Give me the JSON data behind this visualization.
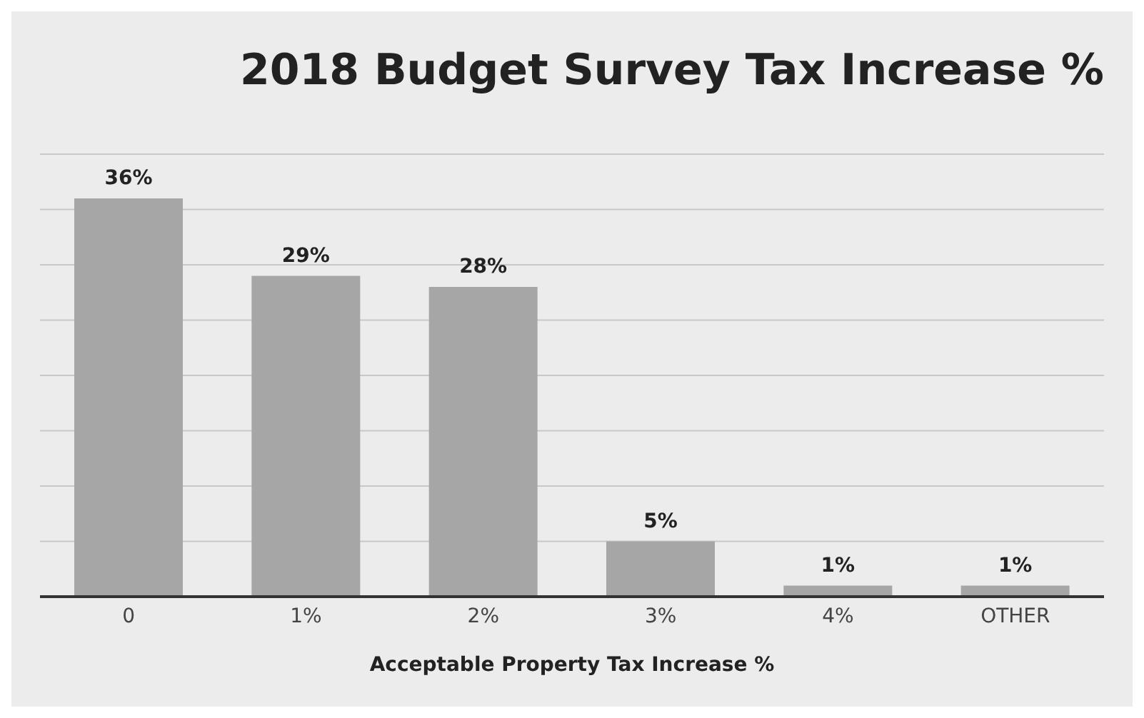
{
  "chart_data": {
    "type": "bar",
    "title": "2018 Budget Survey Tax Increase %",
    "xlabel": "Acceptable Property Tax Increase %",
    "categories": [
      "0",
      "1%",
      "2%",
      "3%",
      "4%",
      "OTHER"
    ],
    "values": [
      36,
      29,
      28,
      5,
      1,
      1
    ],
    "value_labels": [
      "36%",
      "29%",
      "28%",
      "5%",
      "1%",
      "1%"
    ],
    "color": "#a6a6a6",
    "ylim": [
      0,
      40
    ],
    "yticks": [
      {
        "value": 0,
        "label": null
      },
      {
        "value": 5,
        "label": null
      },
      {
        "value": 10,
        "label": null
      },
      {
        "value": 15,
        "label": null
      },
      {
        "value": 20,
        "label": null
      },
      {
        "value": 25,
        "label": null
      },
      {
        "value": 30,
        "label": null
      },
      {
        "value": 35,
        "label": null
      },
      {
        "value": 40,
        "label": null
      }
    ],
    "tick_labels": "x",
    "grid": "y"
  }
}
